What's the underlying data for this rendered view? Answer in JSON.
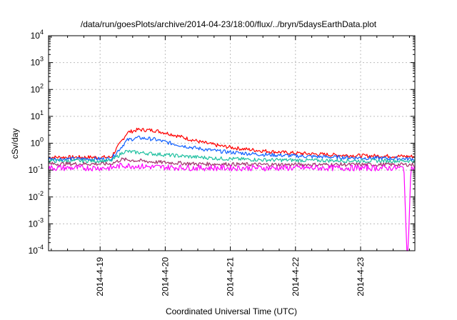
{
  "chart_data": {
    "type": "line",
    "title": "/data/run/goesPlots/archive/2014-04-23/18:00/flux/../bryn/5daysEarthData.plot",
    "xlabel": "Coordinated Universal Time (UTC)",
    "ylabel": "cSv/day",
    "yscale": "log",
    "ylim": [
      0.0001,
      10000
    ],
    "xlim": [
      "2014-04-18 05:00",
      "2014-04-23 20:00"
    ],
    "x_ticks": [
      "2014-4-19",
      "2014-4-20",
      "2014-4-21",
      "2014-4-22",
      "2014-4-23"
    ],
    "y_ticks": [
      {
        "value": 0.0001,
        "base": "10",
        "exp": "-4"
      },
      {
        "value": 0.001,
        "base": "10",
        "exp": "-3"
      },
      {
        "value": 0.01,
        "base": "10",
        "exp": "-2"
      },
      {
        "value": 0.1,
        "base": "10",
        "exp": "-1"
      },
      {
        "value": 1,
        "base": "10",
        "exp": "0"
      },
      {
        "value": 10,
        "base": "10",
        "exp": "1"
      },
      {
        "value": 100,
        "base": "10",
        "exp": "2"
      },
      {
        "value": 1000,
        "base": "10",
        "exp": "3"
      },
      {
        "value": 10000,
        "base": "10",
        "exp": "4"
      }
    ],
    "grid": true,
    "legend": "none",
    "series": [
      {
        "color": "#ff0000",
        "x": [
          "2014-04-18 05:00",
          "2014-04-18 15:00",
          "2014-04-19 04:00",
          "2014-04-19 10:00",
          "2014-04-19 14:00",
          "2014-04-19 20:00",
          "2014-04-20 02:00",
          "2014-04-20 08:00",
          "2014-04-20 14:00",
          "2014-04-20 20:00",
          "2014-04-21 04:00",
          "2014-04-21 12:00",
          "2014-04-21 20:00",
          "2014-04-22 06:00",
          "2014-04-22 16:00",
          "2014-04-23 02:00",
          "2014-04-23 12:00",
          "2014-04-23 20:00"
        ],
        "y": [
          0.3,
          0.3,
          0.3,
          2.5,
          3.2,
          3.0,
          2.2,
          1.5,
          1.05,
          0.8,
          0.62,
          0.52,
          0.45,
          0.4,
          0.36,
          0.34,
          0.33,
          0.32
        ]
      },
      {
        "color": "#1060ff",
        "x": [
          "2014-04-18 05:00",
          "2014-04-18 15:00",
          "2014-04-19 04:00",
          "2014-04-19 10:00",
          "2014-04-19 14:00",
          "2014-04-19 20:00",
          "2014-04-20 02:00",
          "2014-04-20 08:00",
          "2014-04-20 14:00",
          "2014-04-20 20:00",
          "2014-04-21 04:00",
          "2014-04-21 12:00",
          "2014-04-21 20:00",
          "2014-04-22 06:00",
          "2014-04-22 16:00",
          "2014-04-23 02:00",
          "2014-04-23 12:00",
          "2014-04-23 20:00"
        ],
        "y": [
          0.26,
          0.26,
          0.26,
          1.3,
          1.6,
          1.4,
          1.0,
          0.75,
          0.6,
          0.5,
          0.43,
          0.38,
          0.35,
          0.32,
          0.3,
          0.28,
          0.27,
          0.26
        ]
      },
      {
        "color": "#20c0a0",
        "x": [
          "2014-04-18 05:00",
          "2014-04-18 15:00",
          "2014-04-19 04:00",
          "2014-04-19 09:00",
          "2014-04-19 20:00",
          "2014-04-20 08:00",
          "2014-04-20 20:00",
          "2014-04-21 12:00",
          "2014-04-22 06:00",
          "2014-04-23 02:00",
          "2014-04-23 20:00"
        ],
        "y": [
          0.22,
          0.22,
          0.22,
          0.5,
          0.4,
          0.32,
          0.27,
          0.24,
          0.23,
          0.22,
          0.22
        ]
      },
      {
        "color": "#a0306a",
        "x": [
          "2014-04-18 05:00",
          "2014-04-18 15:00",
          "2014-04-19 04:00",
          "2014-04-19 08:00",
          "2014-04-19 20:00",
          "2014-04-20 12:00",
          "2014-04-21 12:00",
          "2014-04-22 12:00",
          "2014-04-23 20:00"
        ],
        "y": [
          0.17,
          0.17,
          0.17,
          0.25,
          0.2,
          0.17,
          0.16,
          0.16,
          0.16
        ]
      },
      {
        "color": "#ff00ff",
        "x": [
          "2014-04-18 05:00",
          "2014-04-18 15:00",
          "2014-04-19 04:00",
          "2014-04-19 08:00",
          "2014-04-19 20:00",
          "2014-04-20 12:00",
          "2014-04-21 12:00",
          "2014-04-22 12:00",
          "2014-04-23 16:00",
          "2014-04-23 17:00",
          "2014-04-23 17:30",
          "2014-04-23 18:30",
          "2014-04-23 20:00"
        ],
        "y": [
          0.12,
          0.12,
          0.12,
          0.15,
          0.13,
          0.12,
          0.12,
          0.12,
          0.12,
          0.0001,
          0.0001,
          0.12,
          0.12
        ]
      }
    ]
  }
}
